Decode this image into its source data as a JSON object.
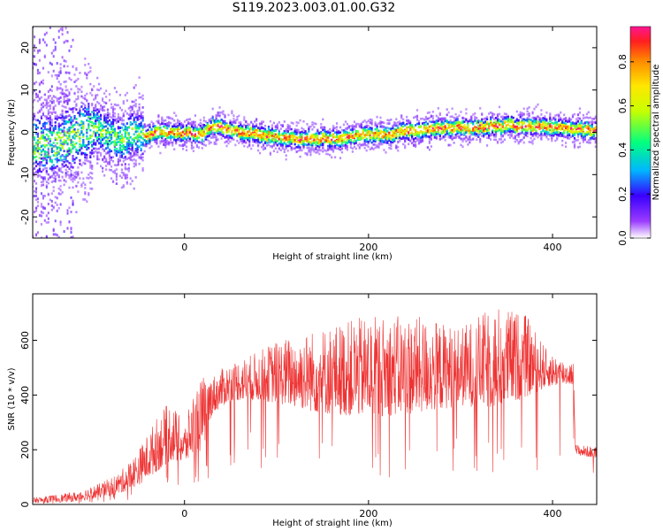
{
  "title": "S119.2023.003.01.00.G32",
  "chart_data": [
    {
      "type": "heatmap",
      "xlabel": "Height of straight line (km)",
      "ylabel": "Frequency (Hz)",
      "xlim": [
        -165,
        448
      ],
      "ylim": [
        -25,
        25
      ],
      "x_ticks": [
        0,
        200,
        400
      ],
      "y_ticks": [
        -20,
        -10,
        0,
        10,
        20
      ],
      "colorbar": {
        "label": "Normalized spectral amplitude",
        "range": [
          0,
          0.96
        ],
        "ticks": [
          0.0,
          0.2,
          0.4,
          0.6,
          0.8
        ],
        "ticks_text": [
          "0.0",
          "0.2",
          "0.4",
          "0.6",
          "0.8"
        ]
      },
      "ridge": {
        "x": [
          -145,
          -130,
          -110,
          -95,
          -80,
          -65,
          -55,
          -45,
          -30,
          0,
          20,
          30,
          50,
          80,
          110,
          140,
          170,
          190,
          220,
          250,
          280,
          310,
          350,
          380,
          420,
          448
        ],
        "y": [
          -3,
          -2,
          0,
          1,
          -1,
          -2,
          0,
          -1,
          0,
          0,
          -0.5,
          1.5,
          0.5,
          -0.5,
          -1.5,
          -1.5,
          -1.5,
          -0.5,
          -0.5,
          0.5,
          1,
          1,
          1.5,
          1.5,
          0.8,
          0.5
        ]
      }
    },
    {
      "type": "line",
      "xlabel": "Height of straight line (km)",
      "ylabel": "SNR (10 * v/v)",
      "xlim": [
        -165,
        448
      ],
      "ylim": [
        0,
        770
      ],
      "x_ticks": [
        0,
        200,
        400
      ],
      "y_ticks": [
        0,
        200,
        400,
        600
      ],
      "color": "#ee3333",
      "series": [
        {
          "x": [
            -165,
            -120,
            -90,
            -70,
            -50,
            -30,
            -15,
            0,
            10,
            20,
            30,
            50,
            80,
            100,
            150,
            200,
            250,
            300,
            340,
            370,
            395,
            420,
            423,
            425,
            448
          ],
          "envelope_low": [
            5,
            10,
            25,
            40,
            70,
            120,
            160,
            150,
            180,
            200,
            330,
            380,
            380,
            370,
            330,
            320,
            330,
            360,
            350,
            390,
            430,
            440,
            430,
            180,
            170
          ],
          "envelope_high": [
            25,
            45,
            80,
            120,
            200,
            320,
            380,
            290,
            420,
            470,
            470,
            520,
            560,
            600,
            650,
            690,
            690,
            650,
            730,
            700,
            560,
            520,
            520,
            220,
            210
          ]
        }
      ]
    }
  ]
}
